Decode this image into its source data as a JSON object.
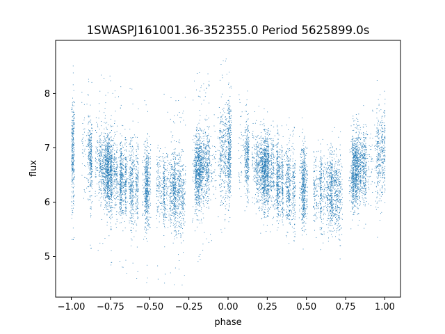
{
  "chart_data": {
    "type": "scatter",
    "title": "1SWASPJ161001.36-352355.0 Period 5625899.0s",
    "xlabel": "phase",
    "ylabel": "flux",
    "xlim": [
      -1.1,
      1.1
    ],
    "ylim": [
      4.25,
      8.98
    ],
    "xticks": [
      -1.0,
      -0.75,
      -0.5,
      -0.25,
      0.0,
      0.25,
      0.5,
      0.75,
      1.0
    ],
    "xtick_labels": [
      "−1.00",
      "−0.75",
      "−0.50",
      "−0.25",
      "0.00",
      "0.25",
      "0.50",
      "0.75",
      "1.00"
    ],
    "yticks": [
      5,
      6,
      7,
      8
    ],
    "ytick_labels": [
      "5",
      "6",
      "7",
      "8"
    ],
    "grid": false,
    "legend": "none",
    "series": [
      {
        "color": "#1f77b4",
        "x_range": [
          -1.0,
          1.0
        ],
        "point_count_estimate": 12000,
        "profile_phase": [
          0.0,
          0.05,
          0.1,
          0.15,
          0.2,
          0.25,
          0.3,
          0.35,
          0.4,
          0.45,
          0.5,
          0.55,
          0.6,
          0.65,
          0.7,
          0.75,
          0.8,
          0.85,
          0.9,
          0.95,
          1.0
        ],
        "profile_median_flux": [
          6.9,
          7.2,
          6.85,
          6.75,
          6.6,
          6.55,
          6.45,
          6.4,
          6.3,
          6.25,
          6.35,
          6.3,
          6.2,
          6.25,
          6.15,
          6.3,
          6.6,
          6.7,
          6.65,
          6.85,
          6.9
        ],
        "profile_spread": [
          0.45,
          0.55,
          0.4,
          0.35,
          0.35,
          0.35,
          0.35,
          0.35,
          0.4,
          0.4,
          0.35,
          0.35,
          0.35,
          0.35,
          0.4,
          0.4,
          0.35,
          0.35,
          0.35,
          0.45,
          0.45
        ]
      }
    ]
  }
}
